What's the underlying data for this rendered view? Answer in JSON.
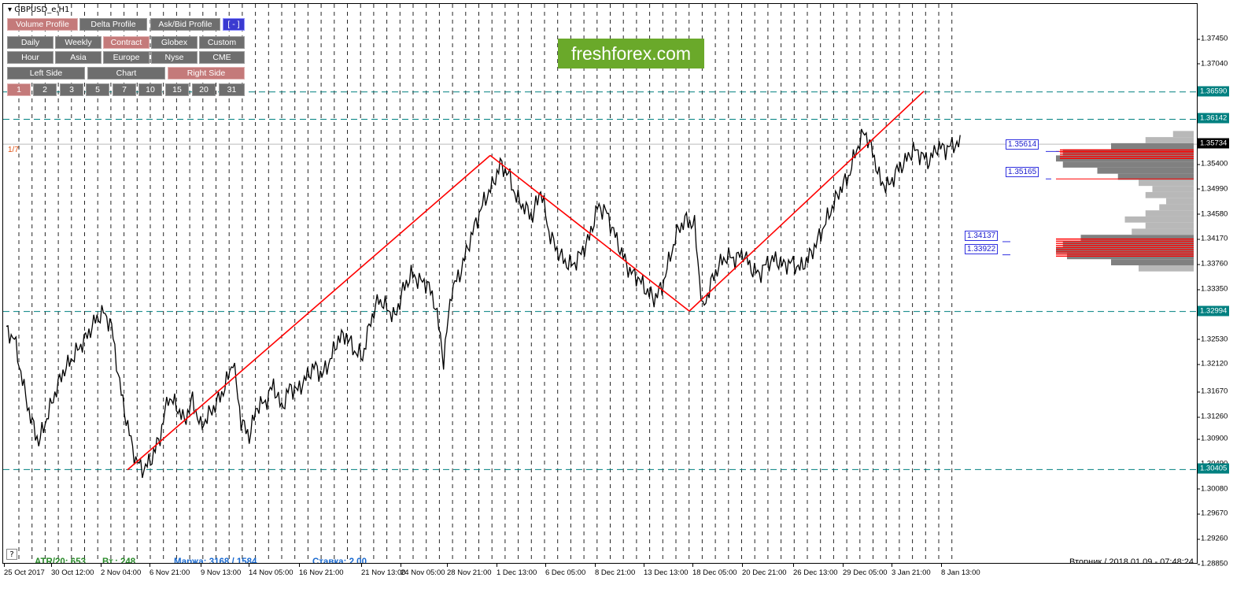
{
  "symbol": "GBPUSD_e,H1",
  "buttons": {
    "row1": [
      {
        "label": "Volume Profile",
        "active": true
      },
      {
        "label": "Delta Profile",
        "active": false
      },
      {
        "label": "Ask/Bid Profile",
        "active": false
      },
      {
        "label": "[ - ]",
        "active": false
      }
    ],
    "row2": [
      {
        "label": "Daily",
        "active": false
      },
      {
        "label": "Weekly",
        "active": false
      },
      {
        "label": "Contract",
        "active": true
      },
      {
        "label": "Globex",
        "active": false
      },
      {
        "label": "Custom",
        "active": false
      }
    ],
    "row3": [
      {
        "label": "Hour",
        "active": false
      },
      {
        "label": "Asia",
        "active": false
      },
      {
        "label": "Europe",
        "active": false
      },
      {
        "label": "Nyse",
        "active": false
      },
      {
        "label": "CME",
        "active": false
      }
    ],
    "row4": [
      {
        "label": "Left Side",
        "active": false
      },
      {
        "label": "Chart",
        "active": false
      },
      {
        "label": "Right Side",
        "active": true
      }
    ],
    "row5": [
      {
        "label": "1",
        "active": true
      },
      {
        "label": "2",
        "active": false
      },
      {
        "label": "3",
        "active": false
      },
      {
        "label": "5",
        "active": false
      },
      {
        "label": "7",
        "active": false
      },
      {
        "label": "10",
        "active": false
      },
      {
        "label": "15",
        "active": false
      },
      {
        "label": "20",
        "active": false
      },
      {
        "label": "31",
        "active": false
      }
    ]
  },
  "page_indicator": "1/7",
  "help_label": "?",
  "watermark": "freshforex.com",
  "stats": {
    "atr": "ATR/20: 653",
    "vt": "Вт.: 248",
    "margin": "Маржа: 3168 / 1584",
    "rate": "Ставка: 2.00"
  },
  "datetime": "Вторник  /  2018.01.09  -  07:48:24",
  "colors": {
    "price_line": "#000000",
    "trend_line": "#ff0000",
    "level_line": "#008080",
    "profile_gray": "#b8b8b8",
    "profile_dark": "#808080",
    "profile_red": "#ff0000",
    "button_active": "#c47a7a",
    "button_normal": "#6e6e6e",
    "button_blue": "#3a3ad0",
    "stat_green": "#2a8a2a",
    "stat_blue": "#1a6ad0"
  },
  "chart_data": {
    "type": "line",
    "symbol": "GBPUSD_e",
    "timeframe": "H1",
    "x_tick_labels": [
      "25 Oct 2017",
      "30 Oct 12:00",
      "2 Nov 04:00",
      "6 Nov 21:00",
      "9 Nov 13:00",
      "14 Nov 05:00",
      "16 Nov 21:00",
      "21 Nov 13:00",
      "24 Nov 05:00",
      "28 Nov 21:00",
      "1 Dec 13:00",
      "6 Dec 05:00",
      "8 Dec 21:00",
      "13 Dec 13:00",
      "18 Dec 05:00",
      "20 Dec 21:00",
      "26 Dec 13:00",
      "29 Dec 05:00",
      "3 Jan 21:00",
      "8 Jan 13:00"
    ],
    "y_tick_labels": [
      "1.37450",
      "1.37040",
      "1.36590",
      "1.36142",
      "1.35734",
      "1.35400",
      "1.34990",
      "1.34580",
      "1.34170",
      "1.33760",
      "1.33350",
      "1.32994",
      "1.32530",
      "1.32120",
      "1.31670",
      "1.31260",
      "1.30900",
      "1.30490",
      "1.30405",
      "1.30080",
      "1.29670",
      "1.29260",
      "1.28850"
    ],
    "ylim": [
      1.2885,
      1.3785
    ],
    "current_price": 1.35734,
    "horizontal_levels": [
      1.3659,
      1.36142,
      1.32994,
      1.30405
    ],
    "level_labels": [
      "1.35614",
      "1.35165",
      "1.34137",
      "1.33922"
    ],
    "series": [
      {
        "values": [
          1.3268,
          1.3255,
          1.3185,
          1.3125,
          1.3085,
          1.3125,
          1.3165,
          1.32,
          1.322,
          1.324,
          1.326,
          1.3285,
          1.3298,
          1.3275,
          1.318,
          1.311,
          1.3055,
          1.304,
          1.306,
          1.3095,
          1.316,
          1.3145,
          1.312,
          1.3155,
          1.311,
          1.313,
          1.315,
          1.3175,
          1.322,
          1.312,
          1.3095,
          1.3145,
          1.315,
          1.318,
          1.314,
          1.3175,
          1.317,
          1.319,
          1.321,
          1.3195,
          1.322,
          1.3255,
          1.326,
          1.3235,
          1.3225,
          1.3285,
          1.332,
          1.3305,
          1.329,
          1.3335,
          1.336,
          1.335,
          1.3345,
          1.331,
          1.322,
          1.3335,
          1.336,
          1.3405,
          1.3445,
          1.348,
          1.3505,
          1.354,
          1.3525,
          1.3485,
          1.347,
          1.3455,
          1.35,
          1.343,
          1.34,
          1.338,
          1.3375,
          1.3395,
          1.342,
          1.347,
          1.3465,
          1.343,
          1.3395,
          1.3365,
          1.3355,
          1.3335,
          1.332,
          1.334,
          1.339,
          1.3435,
          1.345,
          1.344,
          1.33,
          1.3345,
          1.3375,
          1.339,
          1.3385,
          1.3395,
          1.337,
          1.336,
          1.338,
          1.3385,
          1.3375,
          1.338,
          1.337,
          1.3385,
          1.341,
          1.344,
          1.347,
          1.35,
          1.352,
          1.3565,
          1.3595,
          1.356,
          1.351,
          1.3505,
          1.353,
          1.3545,
          1.3565,
          1.3555,
          1.3545,
          1.357,
          1.3565,
          1.3573
        ]
      }
    ],
    "trend_lines": [
      {
        "from": [
          "2 Nov",
          1.304
        ],
        "to": [
          "29 Nov",
          1.3555
        ]
      },
      {
        "from": [
          "29 Nov",
          1.3555
        ],
        "to": [
          "15 Dec",
          1.33
        ]
      },
      {
        "from": [
          "15 Dec",
          1.33
        ],
        "to": [
          "5 Jan",
          1.366
        ]
      }
    ],
    "volume_profile": {
      "prices": [
        1.337,
        1.338,
        1.339,
        1.34,
        1.341,
        1.342,
        1.343,
        1.344,
        1.345,
        1.346,
        1.347,
        1.348,
        1.349,
        1.35,
        1.351,
        1.352,
        1.353,
        1.354,
        1.355,
        1.356,
        1.357,
        1.358,
        1.359
      ],
      "volumes": [
        0.4,
        0.6,
        0.92,
        1.0,
        0.95,
        0.82,
        0.45,
        0.35,
        0.5,
        0.35,
        0.25,
        0.2,
        0.35,
        0.3,
        0.4,
        0.55,
        0.7,
        0.95,
        1.0,
        0.95,
        0.6,
        0.35,
        0.15
      ],
      "poc_zones": [
        [
          1.339,
          1.342
        ],
        [
          1.355,
          1.3565
        ]
      ]
    }
  }
}
